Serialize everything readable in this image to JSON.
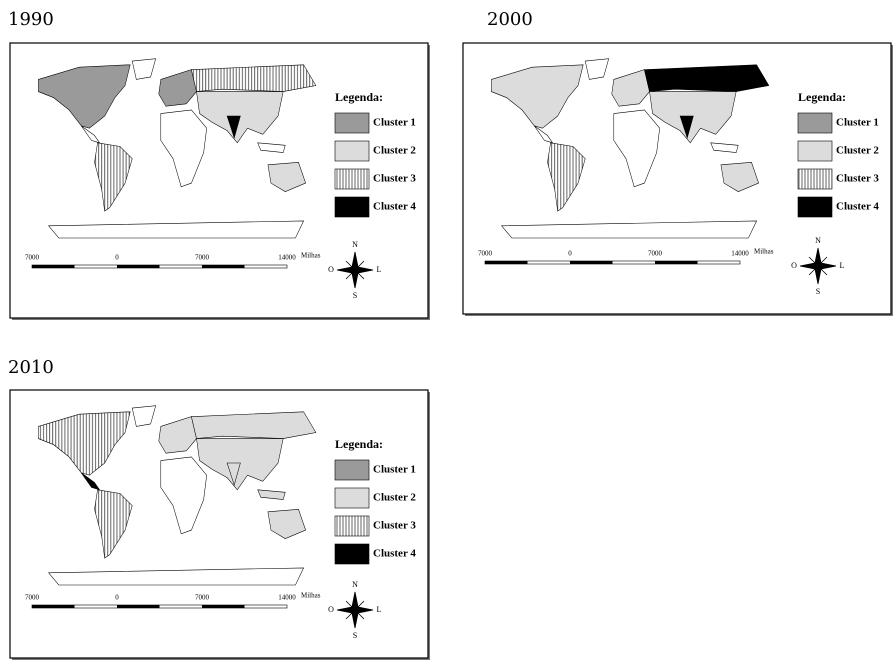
{
  "maps": [
    {
      "title": "1990",
      "legend": {
        "title": "Legenda:",
        "items": [
          "Cluster 1",
          "Cluster 2",
          "Cluster 3",
          "Cluster 4"
        ]
      },
      "scale": {
        "labels": [
          "7000",
          "0",
          "7000",
          "14000"
        ],
        "unit": "Milhas"
      },
      "compass": {
        "north": "N",
        "south": "S",
        "east": "L",
        "west": "O"
      }
    },
    {
      "title": "2000",
      "legend": {
        "title": "Legenda:",
        "items": [
          "Cluster 1",
          "Cluster 2",
          "Cluster 3",
          "Cluster 4"
        ]
      },
      "scale": {
        "labels": [
          "7000",
          "0",
          "7000",
          "14000"
        ],
        "unit": "Milhas"
      },
      "compass": {
        "north": "N",
        "south": "S",
        "east": "L",
        "west": "O"
      }
    },
    {
      "title": "2010",
      "legend": {
        "title": "Legenda:",
        "items": [
          "Cluster 1",
          "Cluster 2",
          "Cluster 3",
          "Cluster 4"
        ]
      },
      "scale": {
        "labels": [
          "7000",
          "0",
          "7000",
          "14000"
        ],
        "unit": "Milhas"
      },
      "compass": {
        "north": "N",
        "south": "S",
        "east": "L",
        "west": "O"
      }
    }
  ]
}
